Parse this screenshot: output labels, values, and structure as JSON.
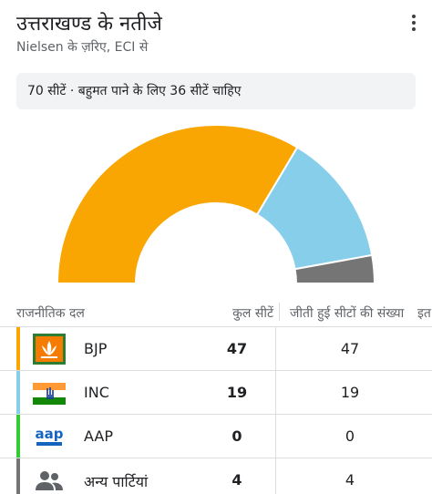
{
  "header": {
    "title": "उत्तराखण्ड के नतीजे",
    "subtitle": "Nielsen के ज़रिए, ECI से",
    "menu_icon": "more-vert-icon"
  },
  "banner": {
    "text": "70 सीटें · बहुमत पाने के लिए 36 सीटें चाहिए"
  },
  "chart_data": {
    "type": "pie",
    "style": "semicircle-donut",
    "total": 70,
    "slices": [
      {
        "label": "BJP",
        "value": 47,
        "color": "#F9A602"
      },
      {
        "label": "INC",
        "value": 19,
        "color": "#87CEEB"
      },
      {
        "label": "AAP",
        "value": 0,
        "color": "#33CC33"
      },
      {
        "label": "अन्य पार्टियां",
        "value": 4,
        "color": "#757575"
      }
    ]
  },
  "table": {
    "headers": {
      "party": "राजनीतिक दल",
      "total": "कुल सीटें",
      "won": "जीती हुई सीटों की संख्या",
      "more": "इत"
    },
    "rows": [
      {
        "party": "BJP",
        "total": "47",
        "won": "47",
        "color": "#F9A602",
        "icon": "bjp-lotus-logo-icon"
      },
      {
        "party": "INC",
        "total": "19",
        "won": "19",
        "color": "#87CEEB",
        "icon": "inc-hand-logo-icon"
      },
      {
        "party": "AAP",
        "total": "0",
        "won": "0",
        "color": "#33CC33",
        "icon": "aap-logo-icon"
      },
      {
        "party": "अन्य पार्टियां",
        "total": "4",
        "won": "4",
        "color": "#757575",
        "icon": "people-group-icon"
      }
    ]
  }
}
